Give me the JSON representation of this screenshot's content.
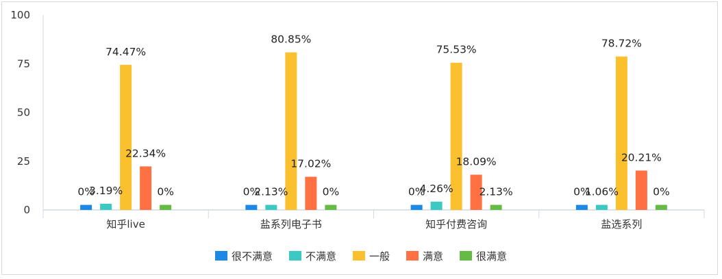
{
  "chart_data": {
    "type": "bar",
    "categories": [
      "知乎live",
      "盐系列电子书",
      "知乎付费咨询",
      "盐选系列"
    ],
    "series": [
      {
        "name": "很不满意",
        "color": "#1e88e5",
        "values": [
          0,
          0,
          0,
          0
        ],
        "labels": [
          "0%",
          "0%",
          "0%",
          "0%"
        ]
      },
      {
        "name": "不满意",
        "color": "#3cc9c3",
        "values": [
          3.19,
          2.13,
          4.26,
          1.06
        ],
        "labels": [
          "3.19%",
          "2.13%",
          "4.26%",
          "1.06%"
        ]
      },
      {
        "name": "一般",
        "color": "#fbc02d",
        "values": [
          74.47,
          80.85,
          75.53,
          78.72
        ],
        "labels": [
          "74.47%",
          "80.85%",
          "75.53%",
          "78.72%"
        ]
      },
      {
        "name": "满意",
        "color": "#ff7043",
        "values": [
          22.34,
          17.02,
          18.09,
          20.21
        ],
        "labels": [
          "22.34%",
          "17.02%",
          "18.09%",
          "20.21%"
        ]
      },
      {
        "name": "很满意",
        "color": "#66bb45",
        "values": [
          0,
          0,
          2.13,
          0
        ],
        "labels": [
          "0%",
          "0%",
          "2.13%",
          "0%"
        ]
      }
    ],
    "y_ticks": [
      "0",
      "25",
      "50",
      "75",
      "100"
    ],
    "ylim": [
      0,
      100
    ],
    "grid": false,
    "legend_position": "bottom"
  }
}
